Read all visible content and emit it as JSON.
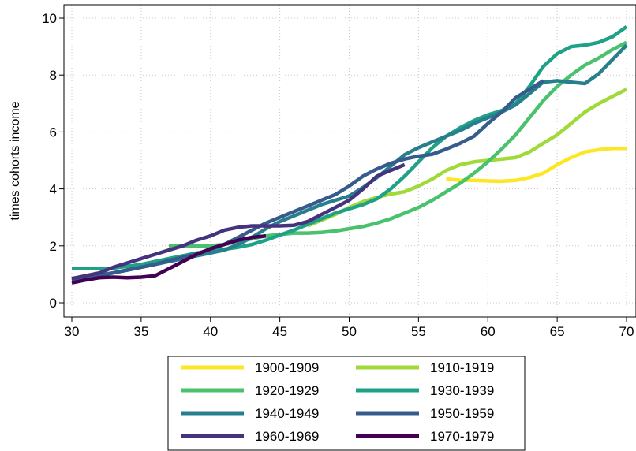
{
  "chart_data": {
    "type": "line",
    "title": "",
    "xlabel": "",
    "ylabel": "times cohorts income",
    "xlim": [
      30,
      70
    ],
    "ylim": [
      0,
      10
    ],
    "xticks": [
      30,
      35,
      40,
      45,
      50,
      55,
      60,
      65,
      70
    ],
    "yticks": [
      0,
      2,
      4,
      6,
      8,
      10
    ],
    "grid": true,
    "legend_position": "bottom",
    "series": [
      {
        "name": "1900-1909",
        "color": "#fde725",
        "x": [
          57,
          58,
          59,
          60,
          61,
          62,
          63,
          64,
          65,
          66,
          67,
          68,
          69,
          70
        ],
        "y": [
          4.35,
          4.3,
          4.3,
          4.28,
          4.27,
          4.3,
          4.4,
          4.55,
          4.85,
          5.1,
          5.3,
          5.38,
          5.42,
          5.42
        ]
      },
      {
        "name": "1910-1919",
        "color": "#a0da39",
        "x": [
          47,
          48,
          49,
          50,
          51,
          52,
          53,
          54,
          55,
          56,
          57,
          58,
          59,
          60,
          61,
          62,
          63,
          64,
          65,
          66,
          67,
          68,
          69,
          70
        ],
        "y": [
          2.7,
          2.9,
          3.1,
          3.35,
          3.55,
          3.7,
          3.82,
          3.9,
          4.1,
          4.35,
          4.65,
          4.85,
          4.95,
          5.0,
          5.05,
          5.1,
          5.3,
          5.6,
          5.9,
          6.3,
          6.7,
          7.0,
          7.25,
          7.5
        ]
      },
      {
        "name": "1920-1929",
        "color": "#4ac16d",
        "x": [
          37,
          38,
          39,
          40,
          41,
          42,
          43,
          44,
          45,
          46,
          47,
          48,
          49,
          50,
          51,
          52,
          53,
          54,
          55,
          56,
          57,
          58,
          59,
          60,
          61,
          62,
          63,
          64,
          65,
          66,
          67,
          68,
          69,
          70
        ],
        "y": [
          2.0,
          2.0,
          2.0,
          2.0,
          2.05,
          2.15,
          2.25,
          2.35,
          2.4,
          2.45,
          2.45,
          2.47,
          2.52,
          2.6,
          2.68,
          2.8,
          2.95,
          3.15,
          3.35,
          3.6,
          3.9,
          4.2,
          4.55,
          4.95,
          5.4,
          5.9,
          6.5,
          7.1,
          7.6,
          8.0,
          8.35,
          8.6,
          8.9,
          9.15
        ]
      },
      {
        "name": "1930-1939",
        "color": "#1fa187",
        "x": [
          30,
          31,
          32,
          33,
          34,
          35,
          36,
          37,
          38,
          39,
          40,
          41,
          42,
          43,
          44,
          45,
          46,
          47,
          48,
          49,
          50,
          51,
          52,
          53,
          54,
          55,
          56,
          57,
          58,
          59,
          60,
          61,
          62,
          63,
          64,
          65,
          66,
          67,
          68,
          69,
          70
        ],
        "y": [
          1.2,
          1.2,
          1.2,
          1.22,
          1.28,
          1.35,
          1.45,
          1.55,
          1.65,
          1.75,
          1.82,
          1.88,
          1.95,
          2.05,
          2.2,
          2.38,
          2.55,
          2.75,
          2.95,
          3.15,
          3.3,
          3.45,
          3.65,
          4.0,
          4.45,
          4.95,
          5.45,
          5.85,
          6.15,
          6.4,
          6.6,
          6.75,
          7.0,
          7.6,
          8.3,
          8.75,
          9.0,
          9.05,
          9.15,
          9.35,
          9.7
        ]
      },
      {
        "name": "1940-1949",
        "color": "#277f8e",
        "x": [
          30,
          31,
          32,
          33,
          34,
          35,
          36,
          37,
          38,
          39,
          40,
          41,
          42,
          43,
          44,
          45,
          46,
          47,
          48,
          49,
          50,
          51,
          52,
          53,
          54,
          55,
          56,
          57,
          58,
          59,
          60,
          61,
          62,
          63,
          64,
          65,
          66,
          67,
          68,
          69,
          70
        ],
        "y": [
          0.85,
          0.9,
          0.98,
          1.05,
          1.15,
          1.25,
          1.35,
          1.45,
          1.55,
          1.65,
          1.75,
          1.85,
          2.05,
          2.3,
          2.6,
          2.85,
          3.05,
          3.25,
          3.45,
          3.6,
          3.75,
          4.05,
          4.4,
          4.8,
          5.2,
          5.45,
          5.65,
          5.85,
          6.05,
          6.3,
          6.5,
          6.7,
          6.95,
          7.35,
          7.75,
          7.8,
          7.75,
          7.7,
          8.05,
          8.55,
          9.05
        ]
      },
      {
        "name": "1950-1959",
        "color": "#365c8d",
        "x": [
          30,
          31,
          32,
          33,
          34,
          35,
          36,
          37,
          38,
          39,
          40,
          41,
          42,
          43,
          44,
          45,
          46,
          47,
          48,
          49,
          50,
          51,
          52,
          53,
          54,
          55,
          56,
          57,
          58,
          59,
          60,
          61,
          62,
          63,
          64
        ],
        "y": [
          0.8,
          0.88,
          0.95,
          1.05,
          1.15,
          1.25,
          1.35,
          1.48,
          1.6,
          1.72,
          1.88,
          2.05,
          2.3,
          2.55,
          2.8,
          3.0,
          3.2,
          3.4,
          3.6,
          3.8,
          4.1,
          4.45,
          4.7,
          4.9,
          5.05,
          5.15,
          5.22,
          5.4,
          5.6,
          5.85,
          6.3,
          6.7,
          7.2,
          7.5,
          7.8
        ]
      },
      {
        "name": "1960-1969",
        "color": "#46337e",
        "x": [
          30,
          31,
          32,
          33,
          34,
          35,
          36,
          37,
          38,
          39,
          40,
          41,
          42,
          43,
          44,
          45,
          46,
          47,
          48,
          49,
          50,
          51,
          52,
          53,
          54
        ],
        "y": [
          0.85,
          0.95,
          1.05,
          1.25,
          1.4,
          1.55,
          1.7,
          1.85,
          2.0,
          2.2,
          2.35,
          2.55,
          2.65,
          2.7,
          2.7,
          2.7,
          2.72,
          2.85,
          3.1,
          3.35,
          3.6,
          4.0,
          4.45,
          4.65,
          4.85
        ]
      },
      {
        "name": "1970-1979",
        "color": "#440154",
        "x": [
          30,
          31,
          32,
          33,
          34,
          35,
          36,
          37,
          38,
          39,
          40,
          41,
          42,
          43,
          44
        ],
        "y": [
          0.7,
          0.8,
          0.88,
          0.9,
          0.88,
          0.9,
          0.95,
          1.2,
          1.45,
          1.7,
          1.9,
          2.05,
          2.2,
          2.3,
          2.35
        ]
      }
    ]
  }
}
